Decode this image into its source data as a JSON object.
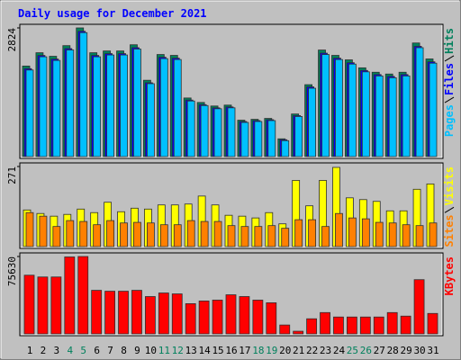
{
  "chart_data": [
    {
      "type": "bar",
      "title": "Daily usage for December 2021",
      "ylim": [
        0,
        2824
      ],
      "yticks": [
        2824
      ],
      "series": [
        {
          "name": "Hits",
          "color": "#00805c",
          "values": [
            1987,
            2279,
            2201,
            2435,
            2824,
            2279,
            2318,
            2318,
            2454,
            1675,
            2240,
            2221,
            1286,
            1188,
            1110,
            1130,
            799,
            818,
            838,
            390,
            935,
            1578,
            2338,
            2221,
            2123,
            1948,
            1851,
            1812,
            1851,
            2493,
            2143
          ]
        },
        {
          "name": "Files",
          "color": "#0000ff",
          "values": [
            1930,
            2220,
            2140,
            2370,
            2750,
            2220,
            2260,
            2260,
            2390,
            1620,
            2180,
            2160,
            1240,
            1140,
            1070,
            1090,
            770,
            790,
            810,
            370,
            900,
            1530,
            2270,
            2160,
            2060,
            1890,
            1800,
            1760,
            1800,
            2420,
            2080
          ]
        },
        {
          "name": "Pages",
          "color": "#00c0ff",
          "values": [
            1900,
            2190,
            2110,
            2340,
            2720,
            2190,
            2230,
            2230,
            2360,
            1600,
            2150,
            2130,
            1220,
            1120,
            1050,
            1070,
            750,
            770,
            790,
            350,
            880,
            1500,
            2240,
            2130,
            2030,
            1860,
            1770,
            1730,
            1770,
            2390,
            2050
          ]
        }
      ]
    },
    {
      "type": "bar",
      "ylim": [
        0,
        271
      ],
      "yticks": [
        271
      ],
      "series": [
        {
          "name": "Visits",
          "color": "#ffff00",
          "values": [
            124,
            112,
            103,
            109,
            127,
            115,
            150,
            118,
            130,
            127,
            141,
            141,
            144,
            171,
            141,
            106,
            103,
            97,
            115,
            77,
            224,
            138,
            224,
            268,
            165,
            159,
            153,
            121,
            121,
            194,
            212
          ]
        },
        {
          "name": "Sites",
          "color": "#ff8000",
          "values": [
            115,
            103,
            68,
            88,
            85,
            74,
            88,
            80,
            82,
            80,
            74,
            74,
            88,
            85,
            85,
            71,
            68,
            68,
            71,
            62,
            91,
            91,
            68,
            112,
            97,
            94,
            82,
            80,
            74,
            71,
            80
          ]
        }
      ]
    },
    {
      "type": "bar",
      "ylim": [
        0,
        75630
      ],
      "yticks": [
        75630
      ],
      "categories": [
        "1",
        "2",
        "3",
        "4",
        "5",
        "6",
        "7",
        "8",
        "9",
        "10",
        "11",
        "12",
        "13",
        "14",
        "15",
        "16",
        "17",
        "18",
        "19",
        "20",
        "21",
        "22",
        "23",
        "24",
        "25",
        "26",
        "27",
        "28",
        "29",
        "30",
        "31"
      ],
      "category_colors": [
        "#000000",
        "#000000",
        "#000000",
        "#00805c",
        "#00805c",
        "#000000",
        "#000000",
        "#000000",
        "#000000",
        "#000000",
        "#00805c",
        "#00805c",
        "#000000",
        "#000000",
        "#000000",
        "#000000",
        "#000000",
        "#00805c",
        "#00805c",
        "#000000",
        "#000000",
        "#000000",
        "#000000",
        "#000000",
        "#00805c",
        "#00805c",
        "#000000",
        "#000000",
        "#000000",
        "#000000",
        "#000000"
      ],
      "series": [
        {
          "name": "KBytes",
          "color": "#ff0000",
          "values": [
            57354,
            55616,
            55616,
            75200,
            75630,
            42581,
            41712,
            41712,
            42581,
            36498,
            39974,
            39105,
            29546,
            32153,
            33022,
            38236,
            36498,
            33022,
            30415,
            8690,
            2607,
            14773,
            20856,
            16511,
            16511,
            16511,
            16511,
            20856,
            17380,
            53009,
            19987
          ]
        }
      ]
    }
  ]
}
